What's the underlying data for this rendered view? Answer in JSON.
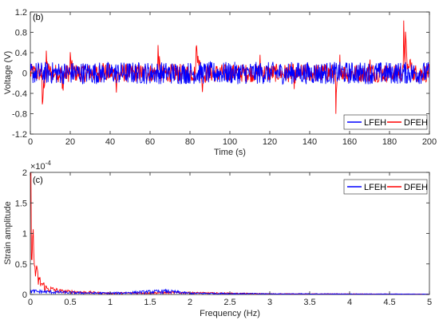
{
  "chart_data": [
    {
      "panel": "(b)",
      "type": "line",
      "xlabel": "Time (s)",
      "ylabel": "Voltage (V)",
      "xlim": [
        0,
        200
      ],
      "ylim": [
        -1.2,
        1.2
      ],
      "x_ticks": [
        0,
        20,
        40,
        60,
        80,
        100,
        120,
        140,
        160,
        180,
        200
      ],
      "y_ticks": [
        -1.2,
        -0.8,
        -0.4,
        0,
        0.4,
        0.8,
        1.2
      ],
      "legend_location": "bottom-right",
      "legend": [
        {
          "name": "LFEH",
          "color": "#0000ff"
        },
        {
          "name": "DFEH",
          "color": "#ff0000"
        }
      ],
      "series": [
        {
          "name": "DFEH",
          "color": "#ff0000",
          "description": "oscillating response, amplitude mostly within ±0.2 V with spikes",
          "baseline_amplitude": 0.18,
          "spikes": [
            {
              "x": 6,
              "y": -0.75
            },
            {
              "x": 8,
              "y": 0.3
            },
            {
              "x": 16,
              "y": -0.35
            },
            {
              "x": 20,
              "y": 0.3
            },
            {
              "x": 36,
              "y": 0.2
            },
            {
              "x": 43,
              "y": -0.3
            },
            {
              "x": 64,
              "y": 0.45
            },
            {
              "x": 65,
              "y": -0.2
            },
            {
              "x": 83,
              "y": 0.8
            },
            {
              "x": 84,
              "y": 0.35
            },
            {
              "x": 86,
              "y": -0.3
            },
            {
              "x": 115,
              "y": 0.25
            },
            {
              "x": 132,
              "y": -0.2
            },
            {
              "x": 153,
              "y": -0.92
            },
            {
              "x": 155,
              "y": 0.3
            },
            {
              "x": 170,
              "y": 0.2
            },
            {
              "x": 187,
              "y": 1.05
            },
            {
              "x": 188,
              "y": 0.5
            },
            {
              "x": 190,
              "y": 0.3
            }
          ]
        },
        {
          "name": "LFEH",
          "color": "#0000ff",
          "description": "random oscillation, amplitude about ±0.25 V",
          "baseline_amplitude": 0.22
        }
      ]
    },
    {
      "panel": "(c)",
      "type": "line",
      "xlabel": "Frequency (Hz)",
      "ylabel": "Strain amplitude",
      "exponent_label": "× 10^-4",
      "xlim": [
        0,
        5
      ],
      "ylim": [
        0,
        2
      ],
      "x_ticks": [
        0,
        0.5,
        1,
        1.5,
        2,
        2.5,
        3,
        3.5,
        4,
        4.5,
        5
      ],
      "y_ticks": [
        0,
        0.5,
        1,
        1.5,
        2
      ],
      "legend_location": "top-right",
      "legend": [
        {
          "name": "LFEH",
          "color": "#0000ff"
        },
        {
          "name": "DFEH",
          "color": "#ff0000"
        }
      ],
      "series": [
        {
          "name": "DFEH",
          "color": "#ff0000",
          "peaks": [
            {
              "x": 0.01,
              "y": 1.5
            },
            {
              "x": 0.03,
              "y": 0.85
            },
            {
              "x": 0.05,
              "y": 0.5
            },
            {
              "x": 0.08,
              "y": 0.3
            },
            {
              "x": 0.12,
              "y": 0.2
            },
            {
              "x": 0.2,
              "y": 0.1
            },
            {
              "x": 0.4,
              "y": 0.05
            },
            {
              "x": 1.0,
              "y": 0.02
            },
            {
              "x": 1.8,
              "y": 0.03
            },
            {
              "x": 3.0,
              "y": 0.01
            },
            {
              "x": 5.0,
              "y": 0.005
            }
          ]
        },
        {
          "name": "LFEH",
          "color": "#0000ff",
          "peaks": [
            {
              "x": 0.02,
              "y": 0.05
            },
            {
              "x": 0.5,
              "y": 0.03
            },
            {
              "x": 1.0,
              "y": 0.02
            },
            {
              "x": 1.7,
              "y": 0.05
            },
            {
              "x": 2.0,
              "y": 0.02
            },
            {
              "x": 3.0,
              "y": 0.01
            },
            {
              "x": 5.0,
              "y": 0.005
            }
          ]
        }
      ]
    }
  ]
}
